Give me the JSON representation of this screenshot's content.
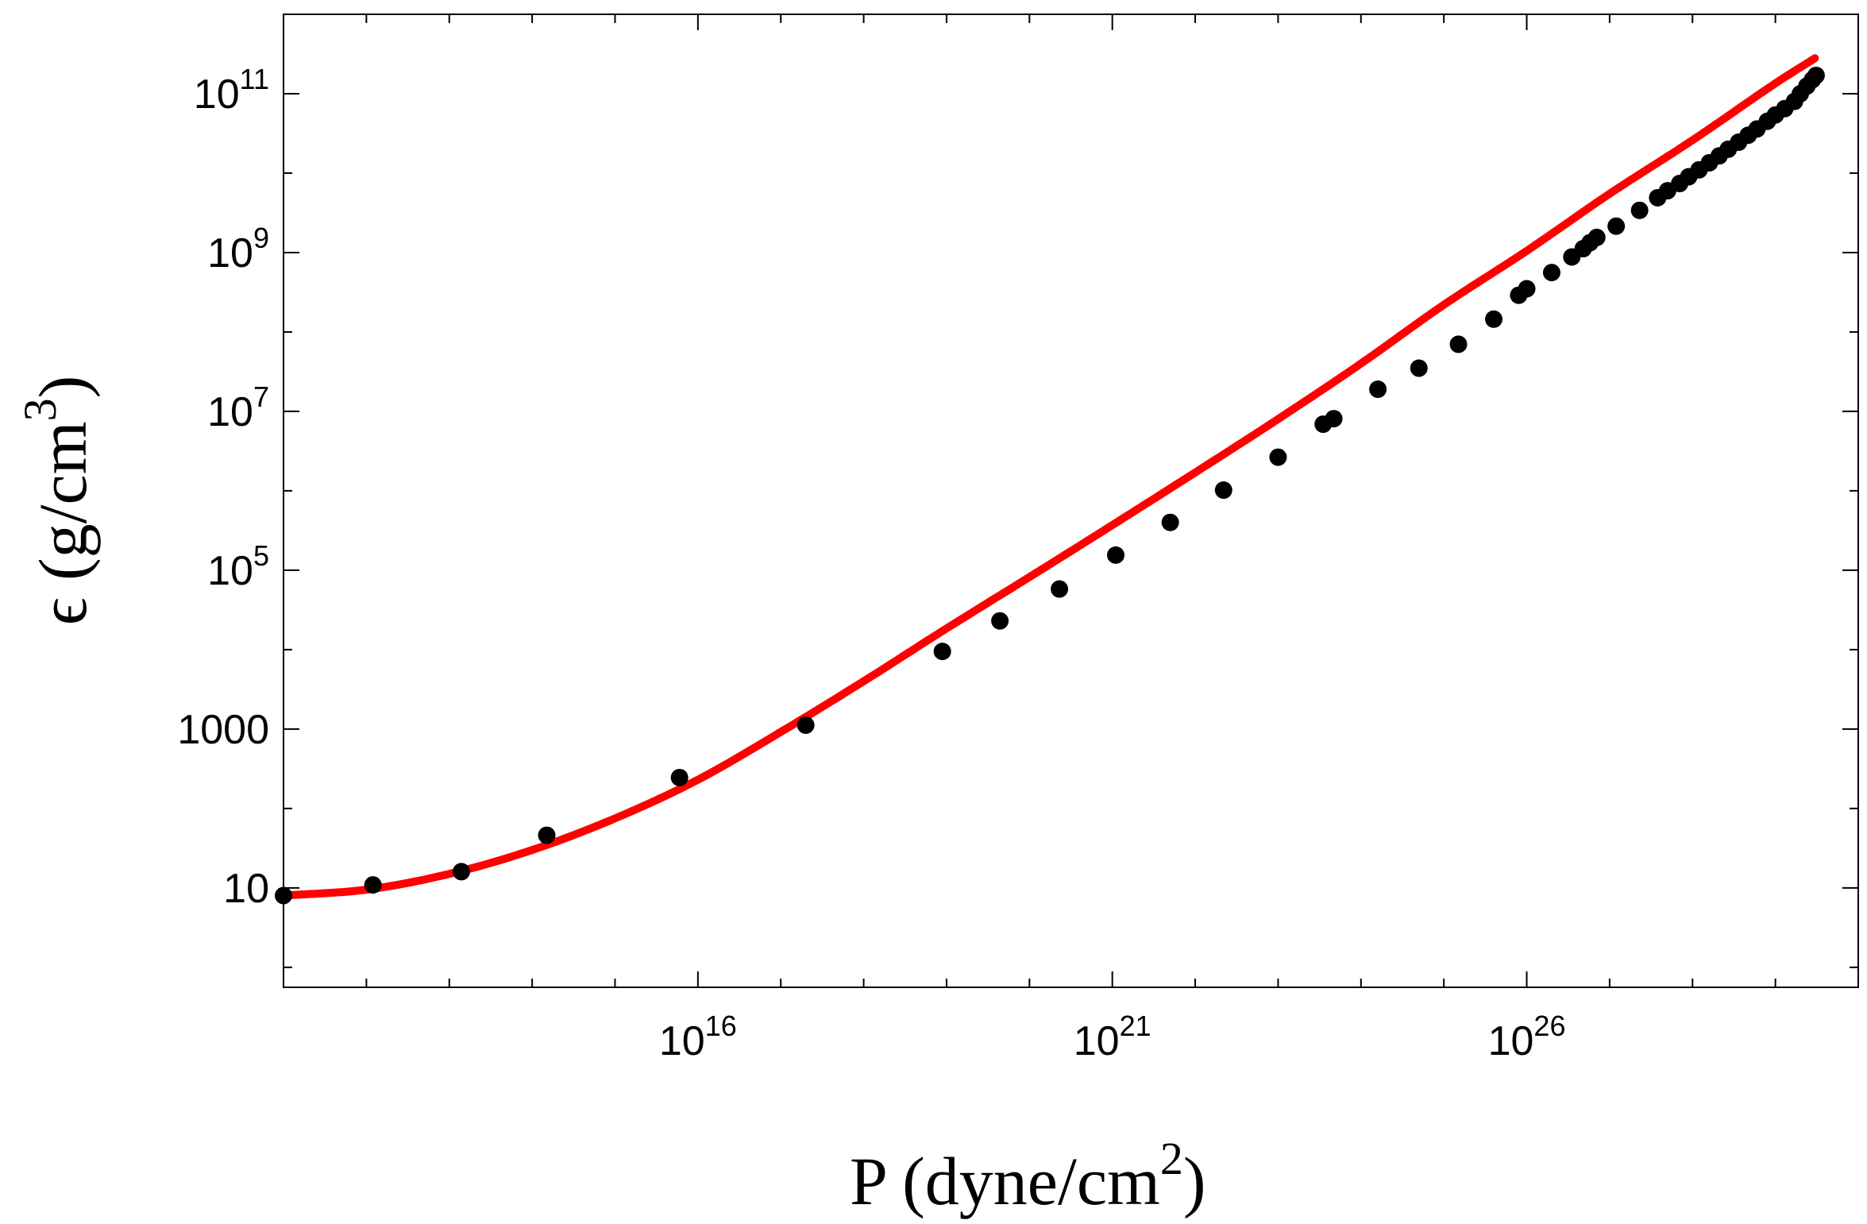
{
  "chart_data": {
    "type": "line",
    "xlabel": {
      "main": "P (dyne/cm",
      "sup": "2",
      "tail": ")"
    },
    "ylabel": {
      "main": "ϵ (g/cm",
      "sup": "3",
      "tail": ")"
    },
    "xscale": "log",
    "yscale": "log",
    "xlim": [
      100000000000.0,
      1e+30
    ],
    "ylim": [
      0.56,
      1000000000000.0
    ],
    "grid": false,
    "x_tick_labels": [
      {
        "value": 1e+16,
        "base": "10",
        "exp": "16"
      },
      {
        "value": 1e+21,
        "base": "10",
        "exp": "21"
      },
      {
        "value": 1e+26,
        "base": "10",
        "exp": "26"
      }
    ],
    "y_tick_labels": [
      {
        "value": 10,
        "base": "10",
        "exp": ""
      },
      {
        "value": 1000,
        "base": "1000",
        "exp": ""
      },
      {
        "value": 100000.0,
        "base": "10",
        "exp": "5"
      },
      {
        "value": 10000000.0,
        "base": "10",
        "exp": "7"
      },
      {
        "value": 1000000000.0,
        "base": "10",
        "exp": "9"
      },
      {
        "value": 100000000000.0,
        "base": "10",
        "exp": "11"
      }
    ],
    "x_minor_ticks": [
      1000000000000.0,
      10000000000000.0,
      100000000000000.0,
      1000000000000000.0,
      1e+17,
      1e+18,
      1e+19,
      1e+20,
      1e+22,
      1e+23,
      1e+24,
      1e+25,
      1e+27,
      1e+28,
      1e+29
    ],
    "y_minor_ticks": [
      1,
      100,
      10000,
      1000000.0,
      100000000.0,
      10000000000.0
    ],
    "series": [
      {
        "style": "line",
        "color": "#ff0000",
        "x": [
          100000000000.0,
          1000000000000.0,
          10000000000000.0,
          100000000000000.0,
          1000000000000000.0,
          1e+16,
          1e+17,
          1e+18,
          1e+19,
          1e+20,
          1e+21,
          1e+22,
          1e+23,
          1e+24,
          1e+25,
          1e+26,
          1e+27,
          1e+28,
          1e+29,
          3e+29
        ],
        "y": [
          8,
          9.5,
          15,
          30,
          75,
          230,
          920,
          4000,
          18500,
          82000,
          370000,
          1700000.0,
          8000000.0,
          40000000.0,
          220000000.0,
          1050000000.0,
          5500000000.0,
          26000000000.0,
          135000000000.0,
          280000000000.0
        ]
      },
      {
        "style": "markers",
        "color": "#000000",
        "x": [
          100000000000.0,
          1200000000000.0,
          14000000000000.0,
          150000000000000.0,
          6000000000000000.0,
          2e+17,
          8.9e+18,
          4.4e+19,
          2.3e+20,
          1.1e+21,
          5e+21,
          2.2e+22,
          1e+23,
          3.5e+23,
          4.7e+23,
          1.6e+24,
          5e+24,
          1.5e+25,
          4e+25,
          8e+25,
          1e+26,
          2e+26,
          3.5e+26,
          4.8e+26,
          5.8e+26,
          7e+26,
          1.2e+27,
          2.3e+27,
          3.8e+27,
          5e+27,
          7e+27,
          9e+27,
          1.2e+28,
          1.6e+28,
          2.1e+28,
          2.7e+28,
          3.6e+28,
          4.7e+28,
          6e+28,
          8e+28,
          1e+29,
          1.3e+29,
          1.7e+29,
          2e+29,
          2.4e+29,
          2.8e+29,
          3.1e+29
        ],
        "y": [
          8,
          10.9,
          16,
          46,
          245,
          1120,
          9500,
          23000,
          58000,
          155000,
          400000,
          1020000.0,
          2650000.0,
          6900000.0,
          8100000.0,
          19000000.0,
          35000000.0,
          70000000.0,
          145000000.0,
          290000000.0,
          350000000.0,
          560000000.0,
          880000000.0,
          1120000000.0,
          1330000000.0,
          1550000000.0,
          2150000000.0,
          3400000000.0,
          4900000000.0,
          6000000000.0,
          7400000000.0,
          9000000000.0,
          11000000000.0,
          13500000000.0,
          16500000000.0,
          20000000000.0,
          24500000000.0,
          30000000000.0,
          36000000000.0,
          45000000000.0,
          54000000000.0,
          65000000000.0,
          80000000000.0,
          100000000000.0,
          125000000000.0,
          150000000000.0,
          170000000000.0
        ]
      }
    ]
  }
}
